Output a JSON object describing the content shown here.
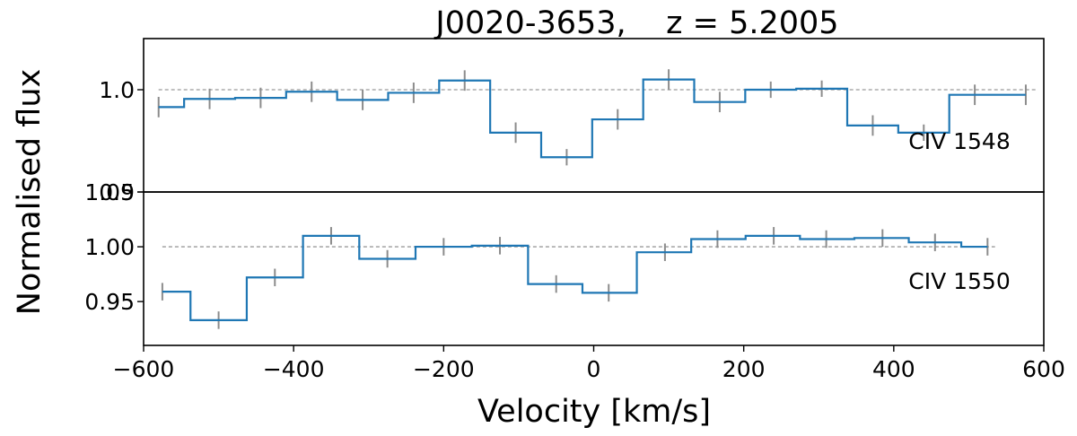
{
  "chart_data": {
    "type": "line",
    "title": "J0020-3653,    z = 5.2005",
    "xlabel": "Velocity [km/s]",
    "ylabel": "Normalised flux",
    "xlim": [
      -600,
      600
    ],
    "xticks": [
      -600,
      -400,
      -200,
      0,
      200,
      400,
      600
    ],
    "xtick_labels": [
      "−600",
      "−400",
      "−200",
      "0",
      "200",
      "400",
      "600"
    ],
    "grid": false,
    "colors": {
      "spectrum": "#1f77b4",
      "errorbar": "#8c8c8c",
      "continuum": "#9a9a9a"
    },
    "panels": [
      {
        "label": "CIV 1548",
        "ylim": [
          0.9,
          1.05
        ],
        "yticks": [
          0.9,
          1.0
        ],
        "ytick_labels": [
          "0.9",
          "1.0"
        ],
        "continuum": 1.0,
        "continuum_x": [
          -580,
          590
        ],
        "x": [
          -580,
          -512,
          -444,
          -376,
          -308,
          -240,
          -172,
          -104,
          -36,
          32,
          100,
          168,
          236,
          304,
          372,
          440,
          508,
          576
        ],
        "flux": [
          0.983,
          0.991,
          0.992,
          0.998,
          0.99,
          0.997,
          1.009,
          0.958,
          0.934,
          0.971,
          1.01,
          0.988,
          1.0,
          1.001,
          0.965,
          0.958,
          0.995,
          0.995
        ],
        "err": [
          0.01,
          0.01,
          0.01,
          0.01,
          0.01,
          0.01,
          0.01,
          0.01,
          0.008,
          0.01,
          0.01,
          0.01,
          0.008,
          0.008,
          0.01,
          0.008,
          0.01,
          0.01
        ]
      },
      {
        "label": "CIV 1550",
        "ylim": [
          0.91,
          1.05
        ],
        "yticks": [
          0.95,
          1.0,
          1.05
        ],
        "ytick_labels": [
          "0.95",
          "1.00",
          "1.05"
        ],
        "continuum": 1.0,
        "continuum_x": [
          -575,
          535
        ],
        "x": [
          -575,
          -500,
          -425,
          -350,
          -275,
          -200,
          -125,
          -50,
          20,
          95,
          165,
          240,
          310,
          385,
          455,
          525
        ],
        "flux": [
          0.959,
          0.933,
          0.972,
          1.01,
          0.989,
          1.0,
          1.001,
          0.966,
          0.958,
          0.995,
          1.007,
          1.01,
          1.007,
          1.008,
          1.004,
          1.0
        ],
        "err": [
          0.008,
          0.008,
          0.008,
          0.008,
          0.008,
          0.008,
          0.008,
          0.008,
          0.008,
          0.008,
          0.008,
          0.008,
          0.008,
          0.008,
          0.008,
          0.008
        ]
      }
    ]
  }
}
